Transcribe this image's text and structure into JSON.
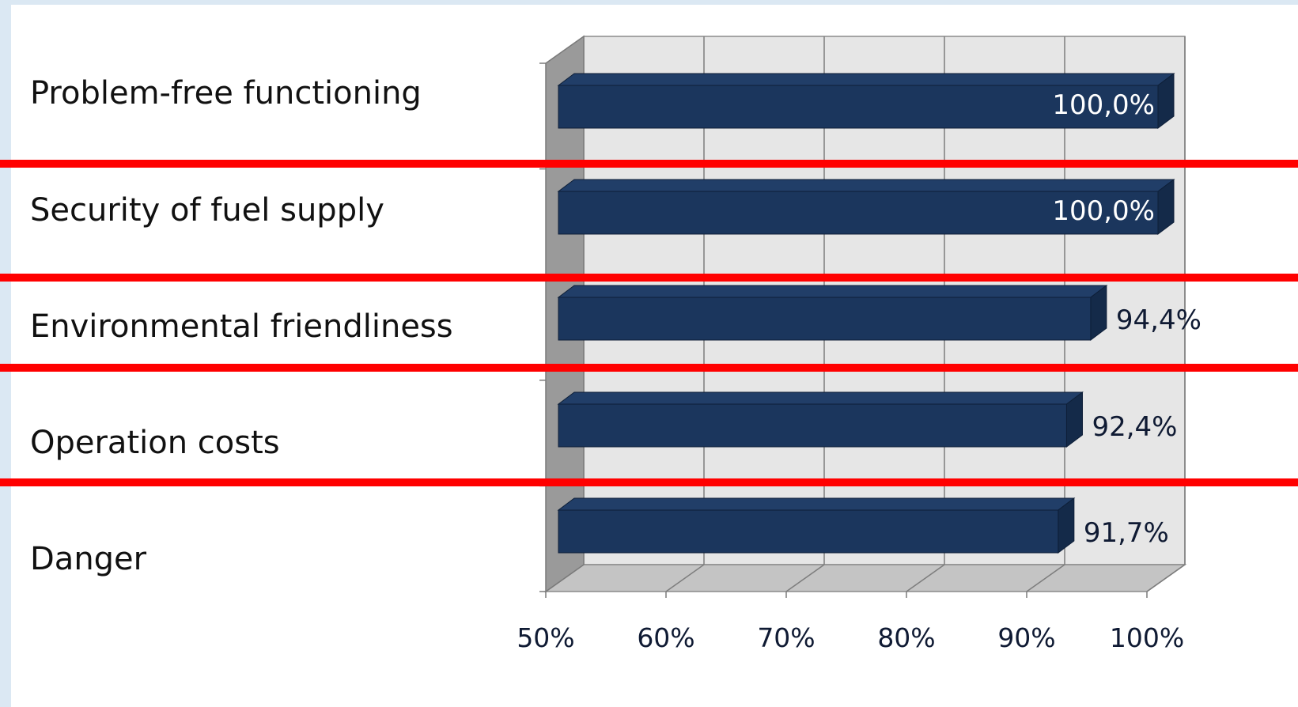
{
  "chart_data": {
    "type": "bar",
    "orientation": "horizontal",
    "style": "3d",
    "categories": [
      "Problem-free functioning",
      "Security of fuel supply",
      "Environmental friendliness",
      "Operation costs",
      "Danger"
    ],
    "values": [
      100.0,
      100.0,
      94.4,
      92.4,
      91.7
    ],
    "value_labels": [
      "100,0%",
      "100,0%",
      "94,4%",
      "92,4%",
      "91,7%"
    ],
    "xlim": [
      50,
      100
    ],
    "xticks": [
      "50%",
      "60%",
      "70%",
      "80%",
      "90%",
      "100%"
    ],
    "grid": true,
    "title": "",
    "xlabel": "",
    "ylabel": ""
  },
  "colors": {
    "bar": "#1b365d",
    "bar_top": "#213e68",
    "bar_side": "#142a49",
    "plot_back": "#e6e6e6",
    "floor": "#c4c4c4",
    "left_wall": "#9a9a9a",
    "separator": "#ff0000",
    "label_inside": "#ffffff",
    "label_outside": "#0f1a33"
  }
}
